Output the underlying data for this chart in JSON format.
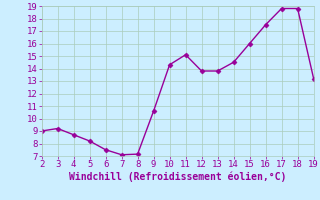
{
  "x": [
    2,
    3,
    4,
    5,
    6,
    7,
    8,
    9,
    10,
    11,
    12,
    13,
    14,
    15,
    16,
    17,
    18,
    19
  ],
  "y": [
    9,
    9.2,
    8.7,
    8.2,
    7.5,
    7.1,
    7.15,
    10.6,
    14.3,
    15.1,
    13.8,
    13.8,
    14.5,
    16.0,
    17.5,
    18.8,
    18.8,
    13.2
  ],
  "xlabel": "Windchill (Refroidissement éolien,°C)",
  "xlim": [
    2,
    19
  ],
  "ylim": [
    7,
    19
  ],
  "xticks": [
    2,
    3,
    4,
    5,
    6,
    7,
    8,
    9,
    10,
    11,
    12,
    13,
    14,
    15,
    16,
    17,
    18,
    19
  ],
  "yticks": [
    7,
    8,
    9,
    10,
    11,
    12,
    13,
    14,
    15,
    16,
    17,
    18,
    19
  ],
  "line_color": "#990099",
  "marker_color": "#990099",
  "bg_color": "#cceeff",
  "grid_color": "#aaccbb",
  "label_color": "#990099",
  "tick_color": "#990099",
  "marker": "D",
  "markersize": 2.5,
  "linewidth": 1.0,
  "tick_fontsize": 6.5,
  "label_fontsize": 7
}
